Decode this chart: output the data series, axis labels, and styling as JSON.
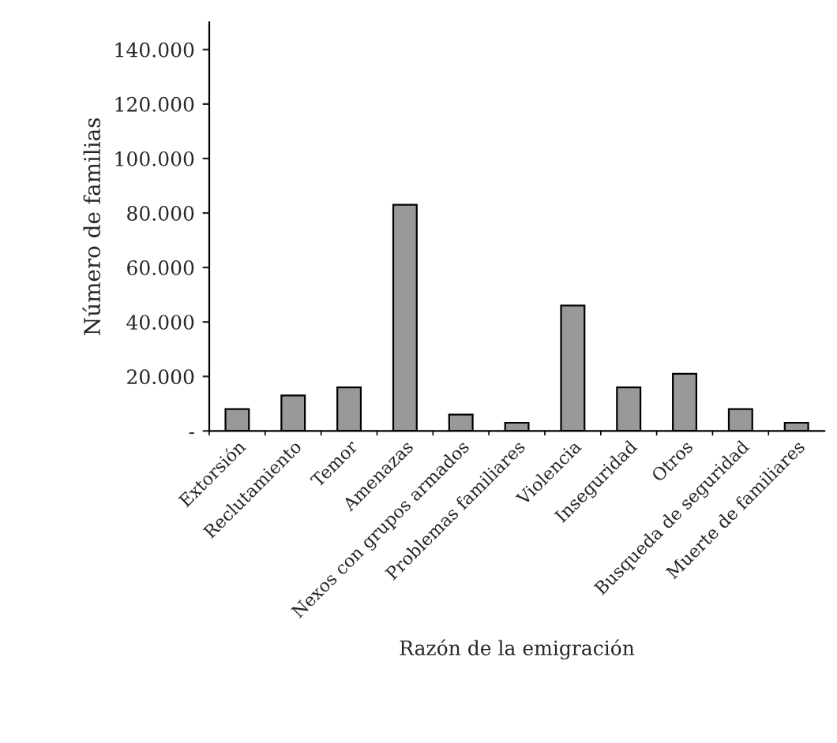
{
  "chart_data": {
    "type": "bar",
    "xlabel": "Razón de la emigración",
    "ylabel": "Número de familias",
    "categories": [
      "Extorsión",
      "Reclutamiento",
      "Temor",
      "Amenazas",
      "Nexos con grupos armados",
      "Problemas familiares",
      "Violencia",
      "Inseguridad",
      "Otros",
      "Busqueda de seguridad",
      "Muerte de familiares"
    ],
    "values": [
      8000,
      13000,
      16000,
      83000,
      6000,
      3000,
      46000,
      16000,
      21000,
      8000,
      3000
    ],
    "color": "#999999",
    "ylim": [
      0,
      150000
    ],
    "yticks": [
      {
        "value": 0,
        "label": "-"
      },
      {
        "value": 20000,
        "label": "20.000"
      },
      {
        "value": 40000,
        "label": "40.000"
      },
      {
        "value": 60000,
        "label": "60.000"
      },
      {
        "value": 80000,
        "label": "80.000"
      },
      {
        "value": 100000,
        "label": "100.000"
      },
      {
        "value": 120000,
        "label": "120.000"
      },
      {
        "value": 140000,
        "label": "140.000"
      }
    ],
    "grid": false,
    "legend": false
  }
}
